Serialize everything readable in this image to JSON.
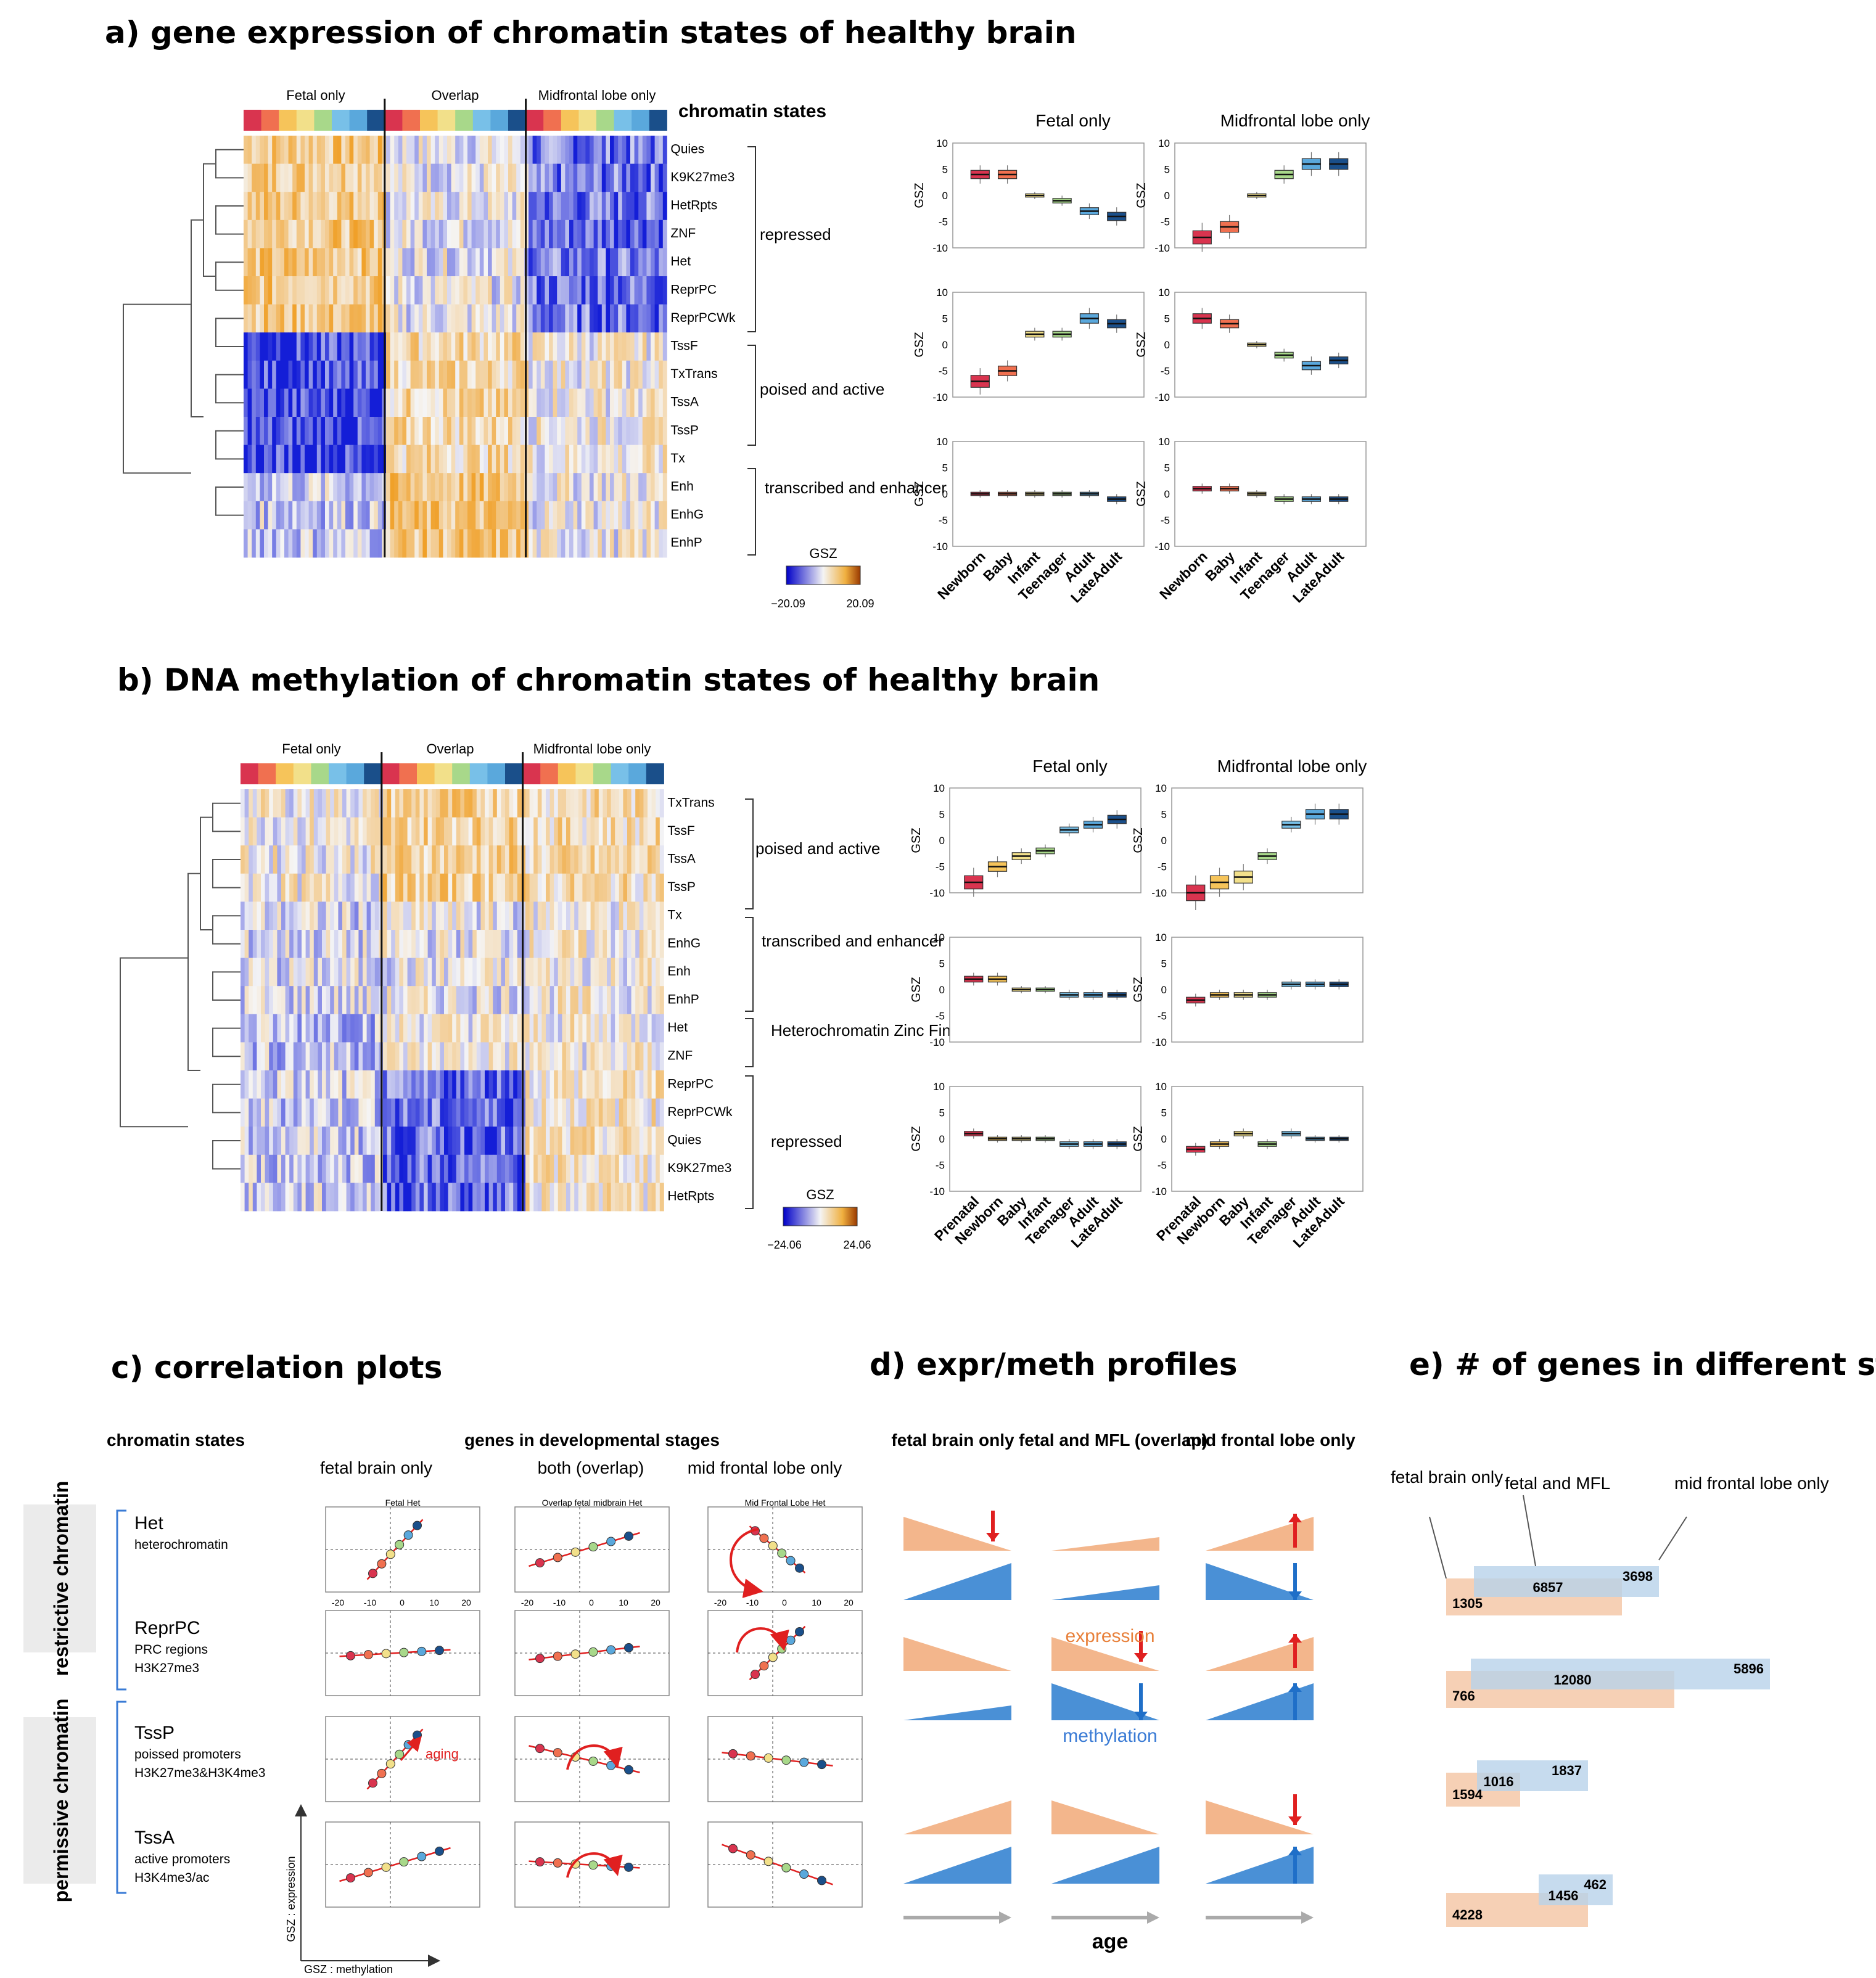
{
  "panel_a": {
    "title": "a) gene expression of chromatin states of healthy brain",
    "col_groups": [
      "Fetal only",
      "Overlap",
      "Midfrontal lobe only"
    ],
    "legend_title": "chromatin states",
    "rows": [
      "Quies",
      "K9K27me3",
      "HetRpts",
      "ZNF",
      "Het",
      "ReprPC",
      "ReprPCWk",
      "TssF",
      "TxTrans",
      "TssA",
      "TssP",
      "Tx",
      "Enh",
      "EnhG",
      "EnhP"
    ],
    "groups": [
      "repressed",
      "poised and active",
      "transcribed and enhancer"
    ],
    "color_key": {
      "title": "GSZ",
      "min": "−20.09",
      "max": "20.09"
    },
    "box_titles": [
      "Fetal only",
      "Midfrontal lobe only"
    ],
    "ylabel": "GSZ",
    "yticks": [
      "10",
      "5",
      "0",
      "-5",
      "-10"
    ],
    "xcats": [
      "Newborn",
      "Baby",
      "Infant",
      "Teenager",
      "Adult",
      "LateAdult"
    ]
  },
  "panel_b": {
    "title": "b) DNA methylation of chromatin states of healthy brain",
    "col_groups": [
      "Fetal only",
      "Overlap",
      "Midfrontal lobe only"
    ],
    "rows": [
      "TxTrans",
      "TssF",
      "TssA",
      "TssP",
      "Tx",
      "EnhG",
      "Enh",
      "EnhP",
      "Het",
      "ZNF",
      "ReprPC",
      "ReprPCWk",
      "Quies",
      "K9K27me3",
      "HetRpts"
    ],
    "groups": [
      "poised and active",
      "transcribed and enhancer",
      "Heterochromatin Zinc Finger TF",
      "repressed"
    ],
    "color_key": {
      "title": "GSZ",
      "min": "−24.06",
      "max": "24.06"
    },
    "box_titles": [
      "Fetal only",
      "Midfrontal lobe only"
    ],
    "ylabel": "GSZ",
    "yticks": [
      "10",
      "5",
      "0",
      "-5",
      "-10"
    ],
    "xcats": [
      "Prenatal",
      "Newborn",
      "Baby",
      "Infant",
      "Teenager",
      "Adult",
      "LateAdult"
    ]
  },
  "panel_c": {
    "title": "c) correlation plots",
    "header_states": "chromatin states",
    "header_genes": "genes in developmental stages",
    "columns": [
      "fetal brain only",
      "both (overlap)",
      "mid frontal lobe only"
    ],
    "plot_headers": [
      "Fetal   Het",
      "Overlap  fetal  midbrain  Het",
      "Mid  Frontal  Lobe  Het"
    ],
    "sides": [
      "restrictive chromatin",
      "permissive chromatin"
    ],
    "states": [
      {
        "name": "Het",
        "desc1": "heterochromatin",
        "desc2": ""
      },
      {
        "name": "ReprPC",
        "desc1": "PRC regions",
        "desc2": "H3K27me3"
      },
      {
        "name": "TssP",
        "desc1": "poissed promoters",
        "desc2": "H3K27me3&H3K4me3"
      },
      {
        "name": "TssA",
        "desc1": "active promoters",
        "desc2": "H3K4me3/ac"
      }
    ],
    "aging_label": "aging",
    "x_ticks": [
      "-20",
      "-10",
      "0",
      "10",
      "20"
    ],
    "ylabel": "GSZ : expression",
    "xlabel": "GSZ : methylation"
  },
  "panel_d": {
    "title": "d) expr/meth profiles",
    "columns": [
      "fetal brain only",
      "fetal and MFL (overlap)",
      "mid frontal lobe only"
    ],
    "expression_label": "expression",
    "methylation_label": "methylation",
    "age_label": "age"
  },
  "panel_e": {
    "title": "e) # of genes in different states",
    "labels": [
      "fetal brain only",
      "fetal and MFL",
      "mid frontal lobe only"
    ],
    "rows": [
      {
        "fetal": "1305",
        "overlap": "6857",
        "mfl": "3698"
      },
      {
        "fetal": "766",
        "overlap": "12080",
        "mfl": "5896"
      },
      {
        "fetal": "1594",
        "overlap": "1016",
        "mfl": "1837"
      },
      {
        "fetal": "4228",
        "overlap": "1456",
        "mfl": "462"
      }
    ]
  },
  "colors": {
    "orange": "#f0a878",
    "blue": "#4a90d6",
    "red": "#e02020",
    "heat_low": "#1f1fd6",
    "heat_high": "#f0a020"
  },
  "chart_data": [
    {
      "type": "box",
      "name": "a-expression-fetal-repressed",
      "categories": [
        "Newborn",
        "Baby",
        "Infant",
        "Teenager",
        "Adult",
        "LateAdult"
      ],
      "values": [
        4,
        4,
        0,
        -1,
        -3,
        -4
      ],
      "ylim": [
        -10,
        10
      ]
    },
    {
      "type": "box",
      "name": "a-expression-mfl-repressed",
      "categories": [
        "Newborn",
        "Baby",
        "Infant",
        "Teenager",
        "Adult",
        "LateAdult"
      ],
      "values": [
        -8,
        -6,
        0,
        4,
        6,
        6
      ],
      "ylim": [
        -10,
        10
      ]
    },
    {
      "type": "box",
      "name": "a-expression-fetal-poised",
      "categories": [
        "Newborn",
        "Baby",
        "Infant",
        "Teenager",
        "Adult",
        "LateAdult"
      ],
      "values": [
        -7,
        -5,
        2,
        2,
        5,
        4
      ],
      "ylim": [
        -10,
        10
      ]
    },
    {
      "type": "box",
      "name": "a-expression-mfl-poised",
      "categories": [
        "Newborn",
        "Baby",
        "Infant",
        "Teenager",
        "Adult",
        "LateAdult"
      ],
      "values": [
        5,
        4,
        0,
        -2,
        -4,
        -3
      ],
      "ylim": [
        -10,
        10
      ]
    },
    {
      "type": "box",
      "name": "a-expression-fetal-enhancer",
      "categories": [
        "Newborn",
        "Baby",
        "Infant",
        "Teenager",
        "Adult",
        "LateAdult"
      ],
      "values": [
        0,
        0,
        0,
        0,
        0,
        -1
      ],
      "ylim": [
        -10,
        10
      ]
    },
    {
      "type": "box",
      "name": "a-expression-mfl-enhancer",
      "categories": [
        "Newborn",
        "Baby",
        "Infant",
        "Teenager",
        "Adult",
        "LateAdult"
      ],
      "values": [
        1,
        1,
        0,
        -1,
        -1,
        -1
      ],
      "ylim": [
        -10,
        10
      ]
    },
    {
      "type": "box",
      "name": "b-methylation-fetal-poised",
      "categories": [
        "Prenatal",
        "Newborn",
        "Baby",
        "Infant",
        "Teenager",
        "Adult",
        "LateAdult"
      ],
      "values": [
        -8,
        -5,
        -3,
        -2,
        2,
        3,
        4
      ],
      "ylim": [
        -10,
        10
      ]
    },
    {
      "type": "box",
      "name": "b-methylation-mfl-poised",
      "categories": [
        "Prenatal",
        "Newborn",
        "Baby",
        "Infant",
        "Teenager",
        "Adult",
        "LateAdult"
      ],
      "values": [
        -10,
        -8,
        -7,
        -3,
        3,
        5,
        5
      ],
      "ylim": [
        -10,
        10
      ]
    },
    {
      "type": "box",
      "name": "b-methylation-fetal-enhancer",
      "categories": [
        "Prenatal",
        "Newborn",
        "Baby",
        "Infant",
        "Teenager",
        "Adult",
        "LateAdult"
      ],
      "values": [
        2,
        2,
        0,
        0,
        -1,
        -1,
        -1
      ],
      "ylim": [
        -10,
        10
      ]
    },
    {
      "type": "box",
      "name": "b-methylation-mfl-enhancer",
      "categories": [
        "Prenatal",
        "Newborn",
        "Baby",
        "Infant",
        "Teenager",
        "Adult",
        "LateAdult"
      ],
      "values": [
        -2,
        -1,
        -1,
        -1,
        1,
        1,
        1
      ],
      "ylim": [
        -10,
        10
      ]
    },
    {
      "type": "box",
      "name": "b-methylation-fetal-repressed",
      "categories": [
        "Prenatal",
        "Newborn",
        "Baby",
        "Infant",
        "Teenager",
        "Adult",
        "LateAdult"
      ],
      "values": [
        1,
        0,
        0,
        0,
        -1,
        -1,
        -1
      ],
      "ylim": [
        -10,
        10
      ]
    },
    {
      "type": "box",
      "name": "b-methylation-mfl-repressed",
      "categories": [
        "Prenatal",
        "Newborn",
        "Baby",
        "Infant",
        "Teenager",
        "Adult",
        "LateAdult"
      ],
      "values": [
        -2,
        -1,
        1,
        -1,
        1,
        0,
        0
      ],
      "ylim": [
        -10,
        10
      ]
    }
  ]
}
